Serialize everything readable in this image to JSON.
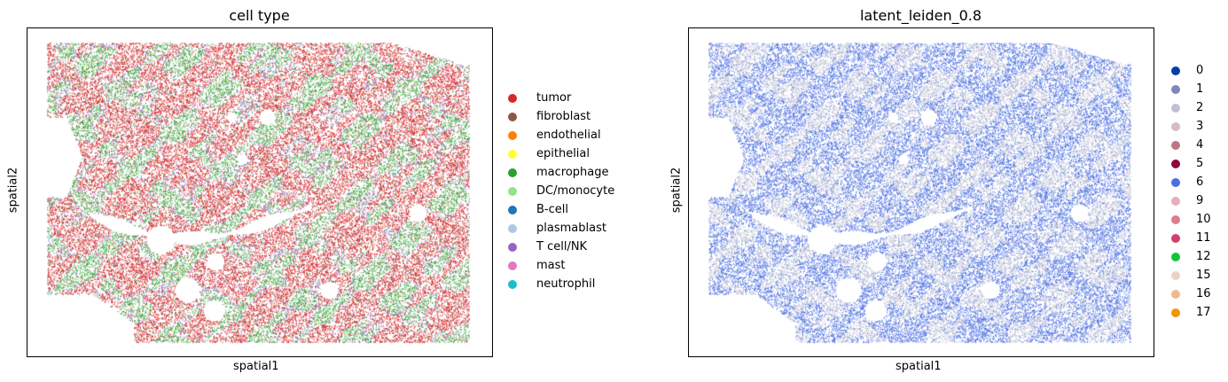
{
  "panels": [
    {
      "title": "cell type",
      "xlabel": "spatial1",
      "ylabel": "spatial2",
      "legend": [
        {
          "label": "tumor",
          "color": "#d62728"
        },
        {
          "label": "fibroblast",
          "color": "#8c564b"
        },
        {
          "label": "endothelial",
          "color": "#ff7f0e"
        },
        {
          "label": "epithelial",
          "color": "#ffff33"
        },
        {
          "label": "macrophage",
          "color": "#2ca02c"
        },
        {
          "label": "DC/monocyte",
          "color": "#98df8a"
        },
        {
          "label": "B-cell",
          "color": "#1f77b4"
        },
        {
          "label": "plasmablast",
          "color": "#aec7e8"
        },
        {
          "label": "T cell/NK",
          "color": "#9467bd"
        },
        {
          "label": "mast",
          "color": "#e377c2"
        },
        {
          "label": "neutrophil",
          "color": "#17becf"
        }
      ]
    },
    {
      "title": "latent_leiden_0.8",
      "xlabel": "spatial1",
      "ylabel": "spatial2",
      "legend": [
        {
          "label": "0",
          "color": "#023fa5"
        },
        {
          "label": "1",
          "color": "#7d87b9"
        },
        {
          "label": "2",
          "color": "#bec1d4"
        },
        {
          "label": "3",
          "color": "#d6bcc0"
        },
        {
          "label": "4",
          "color": "#bb7784"
        },
        {
          "label": "5",
          "color": "#8e063b"
        },
        {
          "label": "6",
          "color": "#4a6fe3"
        },
        {
          "label": "9",
          "color": "#e6afb9"
        },
        {
          "label": "10",
          "color": "#e07b91"
        },
        {
          "label": "11",
          "color": "#d33f6a"
        },
        {
          "label": "12",
          "color": "#11c638"
        },
        {
          "label": "15",
          "color": "#ead3c6"
        },
        {
          "label": "16",
          "color": "#f0b98d"
        },
        {
          "label": "17",
          "color": "#ef9708"
        }
      ]
    }
  ],
  "chart_data": [
    {
      "type": "scatter",
      "title": "cell type",
      "xlabel": "spatial1",
      "ylabel": "spatial2",
      "xticks": [],
      "yticks": [],
      "legend_position": "right",
      "series": [
        {
          "name": "tumor",
          "color": "#d62728",
          "relative_frequency": 0.48
        },
        {
          "name": "fibroblast",
          "color": "#8c564b",
          "relative_frequency": 0.02
        },
        {
          "name": "endothelial",
          "color": "#ff7f0e",
          "relative_frequency": 0.005
        },
        {
          "name": "epithelial",
          "color": "#ffff33",
          "relative_frequency": 0.003
        },
        {
          "name": "macrophage",
          "color": "#2ca02c",
          "relative_frequency": 0.24
        },
        {
          "name": "DC/monocyte",
          "color": "#98df8a",
          "relative_frequency": 0.06
        },
        {
          "name": "B-cell",
          "color": "#1f77b4",
          "relative_frequency": 0.01
        },
        {
          "name": "plasmablast",
          "color": "#aec7e8",
          "relative_frequency": 0.05
        },
        {
          "name": "T cell/NK",
          "color": "#9467bd",
          "relative_frequency": 0.12
        },
        {
          "name": "mast",
          "color": "#e377c2",
          "relative_frequency": 0.005
        },
        {
          "name": "neutrophil",
          "color": "#17becf",
          "relative_frequency": 0.012
        }
      ]
    },
    {
      "type": "scatter",
      "title": "latent_leiden_0.8",
      "xlabel": "spatial1",
      "ylabel": "spatial2",
      "xticks": [],
      "yticks": [],
      "legend_position": "right",
      "series": [
        {
          "name": "0",
          "color": "#023fa5",
          "relative_frequency": 0.0
        },
        {
          "name": "1",
          "color": "#7d87b9",
          "relative_frequency": 0.0
        },
        {
          "name": "2",
          "color": "#bec1d4",
          "relative_frequency": 0.42
        },
        {
          "name": "3",
          "color": "#d6bcc0",
          "relative_frequency": 0.0
        },
        {
          "name": "4",
          "color": "#bb7784",
          "relative_frequency": 0.0
        },
        {
          "name": "5",
          "color": "#8e063b",
          "relative_frequency": 0.0
        },
        {
          "name": "6",
          "color": "#4a6fe3",
          "relative_frequency": 0.55
        },
        {
          "name": "9",
          "color": "#e6afb9",
          "relative_frequency": 0.01
        },
        {
          "name": "10",
          "color": "#e07b91",
          "relative_frequency": 0.01
        },
        {
          "name": "11",
          "color": "#d33f6a",
          "relative_frequency": 0.0
        },
        {
          "name": "12",
          "color": "#11c638",
          "relative_frequency": 0.0
        },
        {
          "name": "15",
          "color": "#ead3c6",
          "relative_frequency": 0.01
        },
        {
          "name": "16",
          "color": "#f0b98d",
          "relative_frequency": 0.0
        },
        {
          "name": "17",
          "color": "#ef9708",
          "relative_frequency": 0.0
        }
      ]
    }
  ]
}
